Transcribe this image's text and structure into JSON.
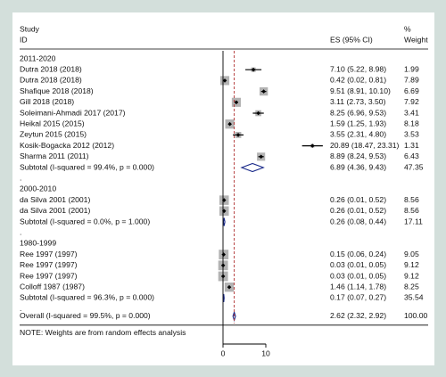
{
  "chart_data": {
    "type": "forest",
    "study_header": "Study",
    "id_header": "ID",
    "es_header": "ES (95% CI)",
    "pct_header": "%",
    "weight_header": "Weight",
    "xlim": [
      0,
      10
    ],
    "xticks": [
      0,
      10
    ],
    "groups": [
      {
        "title": "2011-2020",
        "separator": ".",
        "studies": [
          {
            "label": "Dutra 2018 (2018)",
            "es": 7.1,
            "ci": [
              5.22,
              8.98
            ],
            "es_label": "7.10 (5.22, 8.98)",
            "weight": 1.99
          },
          {
            "label": "Dutra 2018 (2018)",
            "es": 0.42,
            "ci": [
              0.02,
              0.81
            ],
            "es_label": "0.42 (0.02, 0.81)",
            "weight": 7.89
          },
          {
            "label": "Shafique 2018 (2018)",
            "es": 9.51,
            "ci": [
              8.91,
              10.1
            ],
            "es_label": "9.51 (8.91, 10.10)",
            "weight": 6.69
          },
          {
            "label": "Gill 2018 (2018)",
            "es": 3.11,
            "ci": [
              2.73,
              3.5
            ],
            "es_label": "3.11 (2.73, 3.50)",
            "weight": 7.92
          },
          {
            "label": "Soleimani-Ahmadi 2017 (2017)",
            "es": 8.25,
            "ci": [
              6.96,
              9.53
            ],
            "es_label": "8.25 (6.96, 9.53)",
            "weight": 3.41
          },
          {
            "label": "Heikal 2015 (2015)",
            "es": 1.59,
            "ci": [
              1.25,
              1.93
            ],
            "es_label": "1.59 (1.25, 1.93)",
            "weight": 8.18
          },
          {
            "label": "Zeytun 2015 (2015)",
            "es": 3.55,
            "ci": [
              2.31,
              4.8
            ],
            "es_label": "3.55 (2.31, 4.80)",
            "weight": 3.53
          },
          {
            "label": "Kosik-Bogacka 2012 (2012)",
            "es": 20.89,
            "ci": [
              18.47,
              23.31
            ],
            "es_label": "20.89 (18.47, 23.31)",
            "weight": 1.31
          },
          {
            "label": "Sharma 2011 (2011)",
            "es": 8.89,
            "ci": [
              8.24,
              9.53
            ],
            "es_label": "8.89 (8.24, 9.53)",
            "weight": 6.43
          }
        ],
        "subtotal": {
          "label": "Subtotal  (I-squared = 99.4%, p = 0.000)",
          "es": 6.89,
          "ci": [
            4.36,
            9.43
          ],
          "es_label": "6.89 (4.36, 9.43)",
          "weight": 47.35
        }
      },
      {
        "title": "2000-2010",
        "separator": ".",
        "studies": [
          {
            "label": "da Silva 2001 (2001)",
            "es": 0.26,
            "ci": [
              0.01,
              0.52
            ],
            "es_label": "0.26 (0.01, 0.52)",
            "weight": 8.56
          },
          {
            "label": "da Silva 2001 (2001)",
            "es": 0.26,
            "ci": [
              0.01,
              0.52
            ],
            "es_label": "0.26 (0.01, 0.52)",
            "weight": 8.56
          }
        ],
        "subtotal": {
          "label": "Subtotal  (I-squared = 0.0%, p = 1.000)",
          "es": 0.26,
          "ci": [
            0.08,
            0.44
          ],
          "es_label": "0.26 (0.08, 0.44)",
          "weight": 17.11
        }
      },
      {
        "title": "1980-1999",
        "separator": ".",
        "studies": [
          {
            "label": "Ree 1997 (1997)",
            "es": 0.15,
            "ci": [
              0.06,
              0.24
            ],
            "es_label": "0.15 (0.06, 0.24)",
            "weight": 9.05
          },
          {
            "label": "Ree 1997 (1997)",
            "es": 0.03,
            "ci": [
              0.01,
              0.05
            ],
            "es_label": "0.03 (0.01, 0.05)",
            "weight": 9.12
          },
          {
            "label": "Ree 1997 (1997)",
            "es": 0.03,
            "ci": [
              0.01,
              0.05
            ],
            "es_label": "0.03 (0.01, 0.05)",
            "weight": 9.12
          },
          {
            "label": "Colloff 1987 (1987)",
            "es": 1.46,
            "ci": [
              1.14,
              1.78
            ],
            "es_label": "1.46 (1.14, 1.78)",
            "weight": 8.25
          }
        ],
        "subtotal": {
          "label": "Subtotal  (I-squared = 96.3%, p = 0.000)",
          "es": 0.17,
          "ci": [
            0.07,
            0.27
          ],
          "es_label": "0.17 (0.07, 0.27)",
          "weight": 35.54
        }
      }
    ],
    "overall": {
      "label": "Overall  (I-squared = 99.5%, p = 0.000)",
      "es": 2.62,
      "ci": [
        2.32,
        2.92
      ],
      "es_label": "2.62 (2.32, 2.92)",
      "weight": 100,
      "weight_label": "100.00"
    },
    "note": "NOTE: Weights are from random effects analysis",
    "box_color": "#b3b3b3",
    "line_color": "#000000",
    "diamond_color": "#1a2a8a",
    "ref_color": "#b03030"
  }
}
